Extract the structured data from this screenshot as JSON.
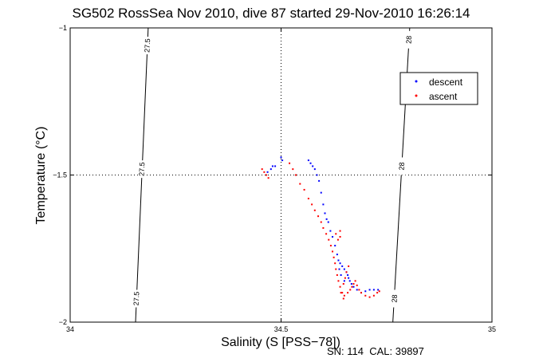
{
  "chart_data": {
    "type": "scatter",
    "title": "SG502 RossSea Nov 2010, dive 87 started 29-Nov-2010 16:26:14",
    "xlabel": "Salinity (S [PSS−78])",
    "ylabel": "Temperature (°C)",
    "xlim": [
      34,
      35
    ],
    "ylim": [
      -2,
      -1
    ],
    "x_ticks": [
      34,
      34.5,
      35
    ],
    "x_tick_labels": [
      "34",
      "34.5",
      "35"
    ],
    "y_ticks": [
      -2,
      -1.5,
      -1
    ],
    "y_tick_labels": [
      "−2",
      "−1.5",
      "−1"
    ],
    "grid": true,
    "legend": {
      "placement": "top-right",
      "entries": [
        "descent",
        "ascent"
      ]
    },
    "isopycnals": [
      {
        "label": "27.5",
        "points": [
          [
            34.185,
            -1.0
          ],
          [
            34.155,
            -2.0
          ]
        ],
        "label_positions": [
          [
            34.183,
            -1.06
          ],
          [
            34.17,
            -1.48
          ],
          [
            34.157,
            -1.92
          ]
        ]
      },
      {
        "label": "28",
        "points": [
          [
            34.805,
            -1.0
          ],
          [
            34.765,
            -2.0
          ]
        ],
        "label_positions": [
          [
            34.803,
            -1.04
          ],
          [
            34.786,
            -1.47
          ],
          [
            34.769,
            -1.92
          ]
        ]
      }
    ],
    "series": [
      {
        "name": "descent",
        "color": "#0000ff",
        "points": [
          [
            34.468,
            -1.49
          ],
          [
            34.476,
            -1.48
          ],
          [
            34.48,
            -1.47
          ],
          [
            34.486,
            -1.47
          ],
          [
            34.5,
            -1.44
          ],
          [
            34.503,
            -1.45
          ],
          [
            34.565,
            -1.45
          ],
          [
            34.57,
            -1.46
          ],
          [
            34.575,
            -1.47
          ],
          [
            34.58,
            -1.48
          ],
          [
            34.585,
            -1.5
          ],
          [
            34.59,
            -1.52
          ],
          [
            34.595,
            -1.56
          ],
          [
            34.6,
            -1.6
          ],
          [
            34.604,
            -1.63
          ],
          [
            34.608,
            -1.65
          ],
          [
            34.612,
            -1.66
          ],
          [
            34.617,
            -1.69
          ],
          [
            34.622,
            -1.71
          ],
          [
            34.628,
            -1.74
          ],
          [
            34.633,
            -1.77
          ],
          [
            34.636,
            -1.79
          ],
          [
            34.64,
            -1.8
          ],
          [
            34.645,
            -1.81
          ],
          [
            34.65,
            -1.82
          ],
          [
            34.655,
            -1.83
          ],
          [
            34.658,
            -1.84
          ],
          [
            34.66,
            -1.85
          ],
          [
            34.663,
            -1.86
          ],
          [
            34.667,
            -1.87
          ],
          [
            34.672,
            -1.88
          ],
          [
            34.68,
            -1.89
          ],
          [
            34.69,
            -1.9
          ],
          [
            34.7,
            -1.895
          ],
          [
            34.71,
            -1.89
          ],
          [
            34.72,
            -1.89
          ],
          [
            34.73,
            -1.89
          ],
          [
            34.65,
            -1.86
          ],
          [
            34.642,
            -1.84
          ],
          [
            34.638,
            -1.82
          ]
        ]
      },
      {
        "name": "ascent",
        "color": "#ff0000",
        "points": [
          [
            34.455,
            -1.48
          ],
          [
            34.46,
            -1.49
          ],
          [
            34.465,
            -1.5
          ],
          [
            34.47,
            -1.51
          ],
          [
            34.52,
            -1.46
          ],
          [
            34.528,
            -1.48
          ],
          [
            34.535,
            -1.5
          ],
          [
            34.545,
            -1.53
          ],
          [
            34.555,
            -1.55
          ],
          [
            34.565,
            -1.58
          ],
          [
            34.573,
            -1.6
          ],
          [
            34.58,
            -1.62
          ],
          [
            34.588,
            -1.64
          ],
          [
            34.595,
            -1.66
          ],
          [
            34.6,
            -1.68
          ],
          [
            34.607,
            -1.7
          ],
          [
            34.613,
            -1.72
          ],
          [
            34.618,
            -1.74
          ],
          [
            34.622,
            -1.76
          ],
          [
            34.625,
            -1.78
          ],
          [
            34.628,
            -1.8
          ],
          [
            34.63,
            -1.82
          ],
          [
            34.633,
            -1.84
          ],
          [
            34.636,
            -1.86
          ],
          [
            34.64,
            -1.88
          ],
          [
            34.645,
            -1.9
          ],
          [
            34.65,
            -1.91
          ],
          [
            34.658,
            -1.9
          ],
          [
            34.664,
            -1.89
          ],
          [
            34.668,
            -1.88
          ],
          [
            34.672,
            -1.87
          ],
          [
            34.676,
            -1.86
          ],
          [
            34.68,
            -1.875
          ],
          [
            34.685,
            -1.89
          ],
          [
            34.69,
            -1.9
          ],
          [
            34.7,
            -1.91
          ],
          [
            34.71,
            -1.915
          ],
          [
            34.72,
            -1.91
          ],
          [
            34.728,
            -1.9
          ],
          [
            34.733,
            -1.895
          ],
          [
            34.635,
            -1.72
          ],
          [
            34.64,
            -1.71
          ],
          [
            34.64,
            -1.69
          ],
          [
            34.63,
            -1.7
          ],
          [
            34.648,
            -1.87
          ],
          [
            34.652,
            -1.85
          ],
          [
            34.655,
            -1.83
          ],
          [
            34.66,
            -1.81
          ],
          [
            34.642,
            -1.9
          ],
          [
            34.648,
            -1.92
          ]
        ]
      }
    ]
  },
  "footer": {
    "text": "SN: 114  CAL: 39897"
  }
}
